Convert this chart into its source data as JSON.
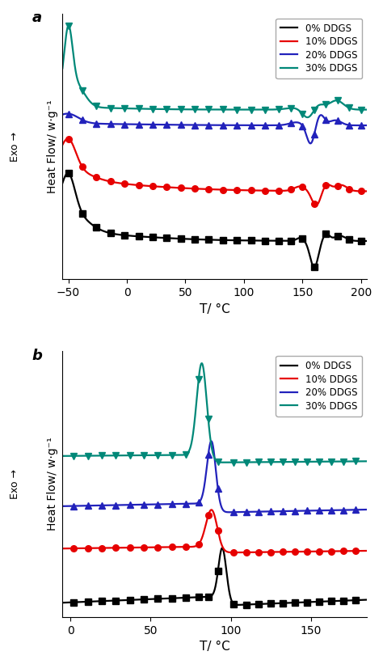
{
  "panel_a": {
    "xlabel": "T/ °C",
    "ylabel": "Heat Flow/ w·g⁻¹",
    "xlim": [
      -55,
      205
    ],
    "xticks": [
      -50,
      0,
      50,
      100,
      150,
      200
    ],
    "colors": [
      "#000000",
      "#e60000",
      "#2222bb",
      "#008878"
    ],
    "markers": [
      "s",
      "o",
      "^",
      "v"
    ],
    "legend_labels": [
      "0% DDGS",
      "10% DDGS",
      "20% DDGS",
      "30% DDGS"
    ],
    "panel_label": "a"
  },
  "panel_b": {
    "xlabel": "T/ °C",
    "ylabel": "Heat Flow/ w·g⁻¹",
    "xlim": [
      -5,
      185
    ],
    "xticks": [
      0,
      50,
      100,
      150
    ],
    "colors": [
      "#000000",
      "#e60000",
      "#2222bb",
      "#008878"
    ],
    "markers": [
      "s",
      "o",
      "^",
      "v"
    ],
    "legend_labels": [
      "0% DDGS",
      "10% DDGS",
      "20% DDGS",
      "30% DDGS"
    ],
    "panel_label": "b"
  }
}
